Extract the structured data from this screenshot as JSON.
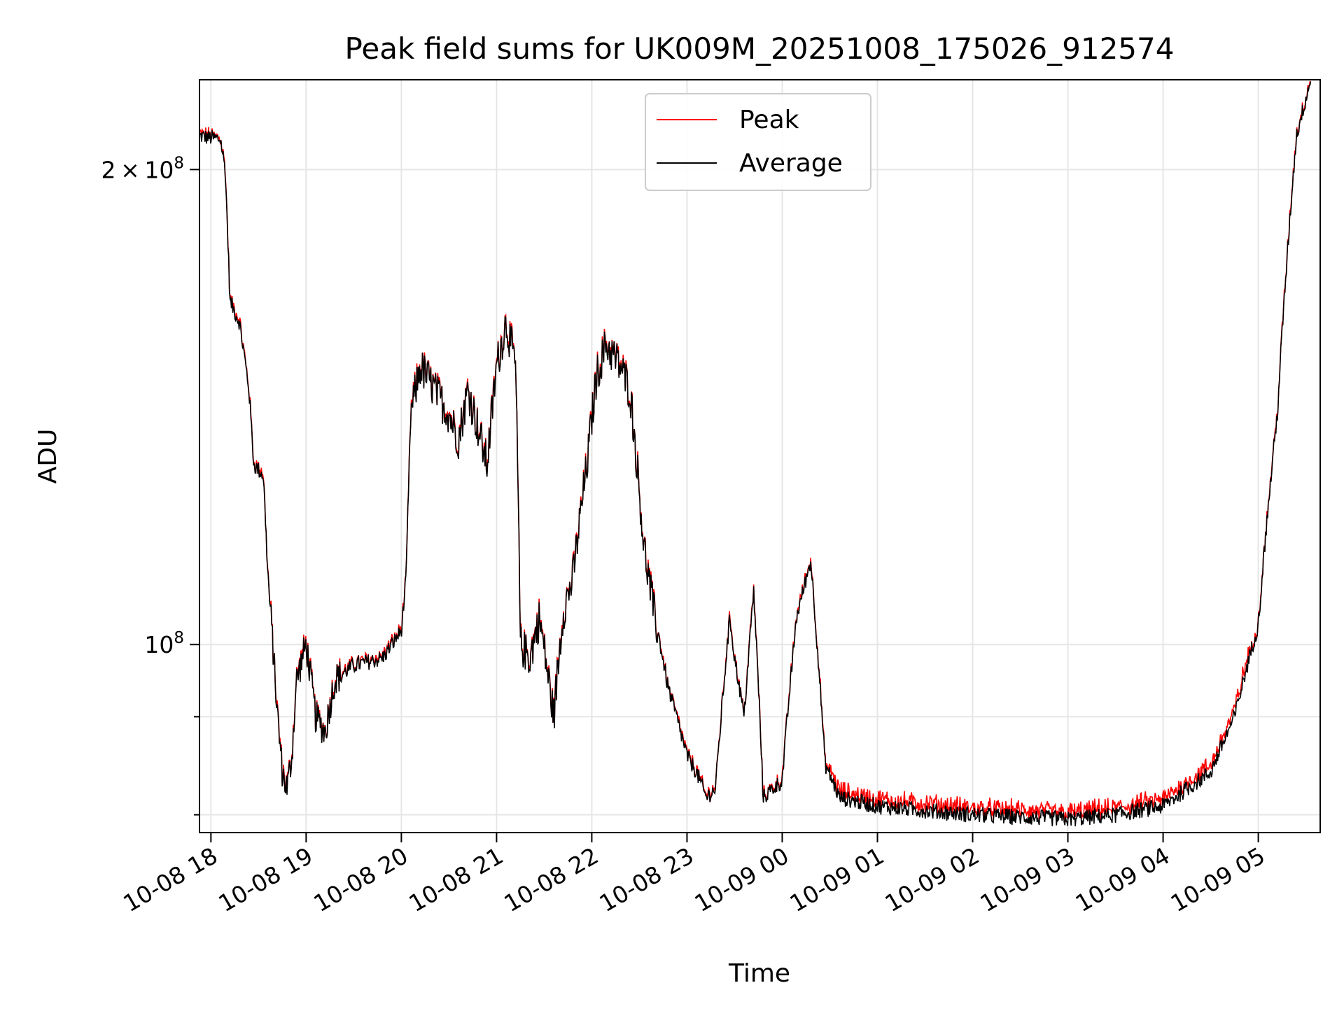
{
  "chart_data": {
    "type": "line",
    "title": "Peak field sums for UK009M_20251008_175026_912574",
    "xlabel": "Time",
    "ylabel": "ADU",
    "yscale": "log",
    "xlim_hours_from_1800": [
      -0.12,
      11.65
    ],
    "ylim": [
      76000000,
      228000000
    ],
    "grid": true,
    "legend_position": "upper-center",
    "x_ticks": [
      {
        "hour": 0,
        "label": "10-08 18"
      },
      {
        "hour": 1,
        "label": "10-08 19"
      },
      {
        "hour": 2,
        "label": "10-08 20"
      },
      {
        "hour": 3,
        "label": "10-08 21"
      },
      {
        "hour": 4,
        "label": "10-08 22"
      },
      {
        "hour": 5,
        "label": "10-08 23"
      },
      {
        "hour": 6,
        "label": "10-09 00"
      },
      {
        "hour": 7,
        "label": "10-09 01"
      },
      {
        "hour": 8,
        "label": "10-09 02"
      },
      {
        "hour": 9,
        "label": "10-09 03"
      },
      {
        "hour": 10,
        "label": "10-09 04"
      },
      {
        "hour": 11,
        "label": "10-09 05"
      }
    ],
    "y_major_ticks": [
      {
        "value": 200000000,
        "label_mantissa": "2",
        "label_base": "10",
        "label_exp": "8"
      },
      {
        "value": 100000000,
        "label_mantissa": "",
        "label_base": "10",
        "label_exp": "8"
      }
    ],
    "y_minor_ticks": [
      78000000,
      90000000
    ],
    "series": [
      {
        "name": "Peak",
        "color": "#ff0000"
      },
      {
        "name": "Average",
        "color": "#000000"
      }
    ],
    "key_points": [
      [
        -0.12,
        210
      ],
      [
        0.1,
        209
      ],
      [
        0.15,
        200
      ],
      [
        0.2,
        165
      ],
      [
        0.3,
        160
      ],
      [
        0.4,
        145
      ],
      [
        0.45,
        130
      ],
      [
        0.55,
        128
      ],
      [
        0.6,
        110
      ],
      [
        0.65,
        100
      ],
      [
        0.7,
        90
      ],
      [
        0.75,
        83
      ],
      [
        0.8,
        81
      ],
      [
        0.85,
        85
      ],
      [
        0.9,
        95
      ],
      [
        1.0,
        100
      ],
      [
        1.1,
        90
      ],
      [
        1.2,
        88
      ],
      [
        1.3,
        95
      ],
      [
        1.5,
        97
      ],
      [
        1.8,
        98
      ],
      [
        2.0,
        102
      ],
      [
        2.05,
        110
      ],
      [
        2.1,
        140
      ],
      [
        2.2,
        150
      ],
      [
        2.5,
        140
      ],
      [
        2.6,
        135
      ],
      [
        2.7,
        145
      ],
      [
        2.9,
        130
      ],
      [
        3.0,
        150
      ],
      [
        3.1,
        160
      ],
      [
        3.2,
        150
      ],
      [
        3.25,
        100
      ],
      [
        3.35,
        98
      ],
      [
        3.45,
        104
      ],
      [
        3.6,
        90
      ],
      [
        3.7,
        105
      ],
      [
        3.8,
        110
      ],
      [
        3.95,
        130
      ],
      [
        4.05,
        148
      ],
      [
        4.15,
        155
      ],
      [
        4.3,
        150
      ],
      [
        4.4,
        145
      ],
      [
        4.55,
        115
      ],
      [
        4.65,
        105
      ],
      [
        4.8,
        94
      ],
      [
        5.0,
        85
      ],
      [
        5.1,
        83
      ],
      [
        5.2,
        80
      ],
      [
        5.3,
        81
      ],
      [
        5.45,
        104
      ],
      [
        5.5,
        98
      ],
      [
        5.6,
        90
      ],
      [
        5.7,
        108
      ],
      [
        5.8,
        80
      ],
      [
        6.0,
        82
      ],
      [
        6.15,
        104
      ],
      [
        6.3,
        113
      ],
      [
        6.45,
        84
      ],
      [
        6.6,
        80
      ],
      [
        7.0,
        79
      ],
      [
        8.0,
        78
      ],
      [
        9.0,
        77.5
      ],
      [
        9.5,
        78
      ],
      [
        10.0,
        79
      ],
      [
        10.5,
        83
      ],
      [
        10.75,
        90
      ],
      [
        11.0,
        103
      ],
      [
        11.2,
        140
      ],
      [
        11.4,
        210
      ],
      [
        11.55,
        228
      ]
    ]
  }
}
